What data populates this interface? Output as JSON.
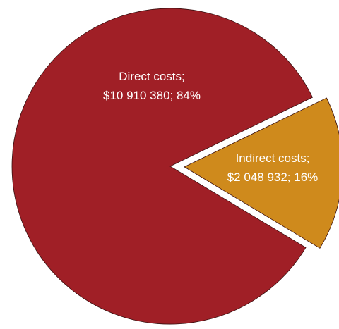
{
  "chart_data": {
    "type": "pie",
    "title": "",
    "slices": [
      {
        "category": "Direct costs",
        "value": 10910380,
        "percent": 84,
        "label_line1": "Direct costs;",
        "label_line2": "$10 910 380; 84%",
        "color": "#a01f26",
        "exploded": false
      },
      {
        "category": "Indirect costs",
        "value": 2048932,
        "percent": 16,
        "label_line1": "Indirect costs;",
        "label_line2": "$2 048 932; 16%",
        "color": "#cf8a1c",
        "exploded": true
      }
    ],
    "legend": "none"
  }
}
